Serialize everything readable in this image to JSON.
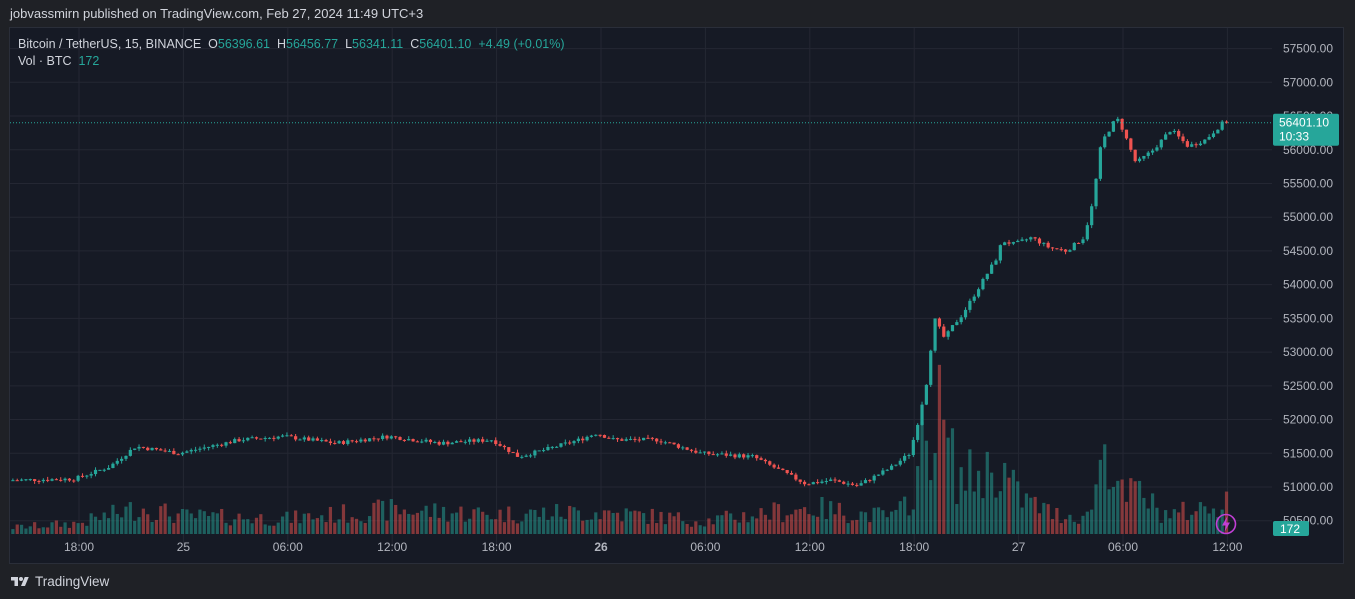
{
  "header": {
    "published_text": "jobvassmirn published on TradingView.com, Feb 27, 2024 11:49 UTC+3"
  },
  "legend": {
    "symbol": "Bitcoin / TetherUS, 15, BINANCE",
    "open_key": "O",
    "open": "56396.61",
    "high_key": "H",
    "high": "56456.77",
    "low_key": "L",
    "low": "56341.11",
    "close_key": "C",
    "close": "56401.10",
    "change": "+4.49 (+0.01%)",
    "volume_label": "Vol · BTC",
    "volume_value": "172"
  },
  "price_tag": {
    "price": "56401.10",
    "countdown": "10:33"
  },
  "volume_tag": "172",
  "footer": {
    "brand": "TradingView"
  },
  "colors": {
    "up": "#26a69a",
    "down": "#ef5350",
    "background": "#161a25",
    "grid": "#242733"
  },
  "chart_data": {
    "type": "candlestick",
    "symbol": "Bitcoin / TetherUS",
    "interval": "15",
    "exchange": "BINANCE",
    "x_ticks": [
      "18:00",
      "25",
      "06:00",
      "12:00",
      "18:00",
      "26",
      "06:00",
      "12:00",
      "18:00",
      "27",
      "06:00",
      "12:00"
    ],
    "x_tick_hours": [
      0,
      6,
      12,
      18,
      24,
      30,
      36,
      42,
      48,
      54,
      60,
      66
    ],
    "x_bold_labels": [
      "26"
    ],
    "y_ticks": [
      50500,
      51000,
      51500,
      52000,
      52500,
      53000,
      53500,
      54000,
      54500,
      55000,
      55500,
      56000,
      56500,
      57000,
      57500
    ],
    "ylim": [
      50400,
      57750
    ],
    "last_price": 56401.1,
    "series": [
      {
        "name": "price",
        "hours": [
          -3.8,
          0,
          2,
          3.5,
          6,
          9.5,
          12,
          15,
          18,
          21,
          24,
          25.5,
          27,
          29,
          30,
          31,
          33.5,
          36,
          39,
          42,
          43.5,
          45,
          47,
          48,
          48.5,
          49,
          49.4,
          50,
          50.5,
          51,
          53,
          53.3,
          54,
          55,
          56,
          57,
          58,
          58.5,
          59,
          59.7,
          60,
          61,
          62,
          63,
          64,
          65,
          66
        ],
        "values": [
          51100,
          51120,
          51300,
          51600,
          51500,
          51700,
          51750,
          51650,
          51750,
          51650,
          51700,
          51450,
          51550,
          51700,
          51800,
          51700,
          51700,
          51500,
          51450,
          51050,
          51100,
          51020,
          51300,
          51500,
          52000,
          52600,
          53500,
          53200,
          53400,
          53550,
          54400,
          54650,
          54600,
          54700,
          54550,
          54500,
          54700,
          55200,
          56100,
          56400,
          56450,
          55800,
          56000,
          56300,
          56050,
          56150,
          56401
        ]
      },
      {
        "name": "volume",
        "hours": [
          -3.8,
          0,
          3.5,
          6,
          12,
          18,
          24,
          30,
          36,
          42,
          45,
          47,
          48,
          48.5,
          49.4,
          50.5,
          53,
          54,
          56,
          58,
          59,
          60,
          61,
          62,
          63,
          64,
          65,
          66
        ],
        "values": [
          30,
          50,
          120,
          80,
          70,
          110,
          90,
          100,
          60,
          120,
          90,
          80,
          200,
          380,
          560,
          250,
          300,
          170,
          90,
          80,
          420,
          160,
          200,
          100,
          90,
          110,
          120,
          172
        ]
      }
    ]
  }
}
